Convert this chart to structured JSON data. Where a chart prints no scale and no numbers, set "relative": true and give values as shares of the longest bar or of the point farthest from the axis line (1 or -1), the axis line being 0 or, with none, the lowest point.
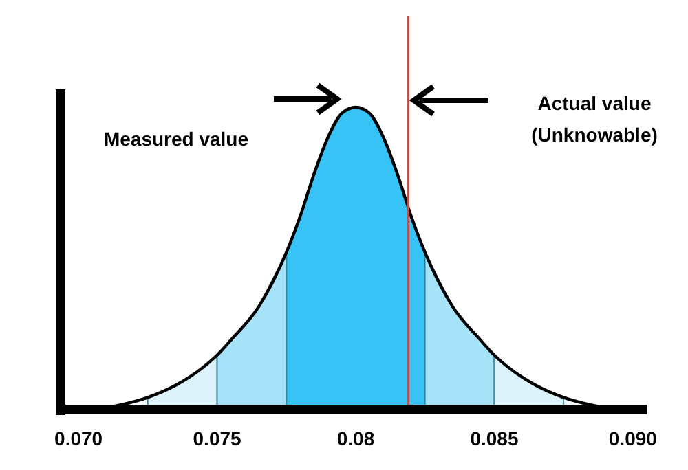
{
  "chart_data": {
    "type": "area",
    "relative": true,
    "tick_labels": "x",
    "xlim": [
      0.0695,
      0.0905
    ],
    "xticks": [
      {
        "value": 0.07,
        "label": "0.070"
      },
      0.075,
      0.08,
      0.085,
      {
        "value": 0.09,
        "label": "0.090"
      }
    ],
    "series": [
      {
        "color": "#f2fafe",
        "x": [
          0.0705,
          0.0715,
          0.0725
        ],
        "values": [
          0,
          0.015,
          0.04
        ]
      },
      {
        "color": "#dcf3fc",
        "x": [
          0.0725,
          0.0735,
          0.0745,
          0.075
        ],
        "values": [
          0.04,
          0.08,
          0.14,
          0.18
        ]
      },
      {
        "color": "#a6e3f9",
        "x": [
          0.075,
          0.0755,
          0.0765,
          0.0775
        ],
        "values": [
          0.18,
          0.23,
          0.34,
          0.52
        ]
      },
      {
        "color": "#38c3f6",
        "x": [
          0.0775,
          0.078,
          0.0785,
          0.079,
          0.0795,
          0.08,
          0.0805,
          0.081,
          0.0815,
          0.082,
          0.0825
        ],
        "values": [
          0.52,
          0.64,
          0.78,
          0.9,
          0.98,
          1,
          0.98,
          0.9,
          0.78,
          0.64,
          0.52
        ]
      },
      {
        "color": "#a6e3f9",
        "x": [
          0.0825,
          0.0835,
          0.0845,
          0.085
        ],
        "values": [
          0.52,
          0.34,
          0.23,
          0.18
        ]
      },
      {
        "color": "#dcf3fc",
        "x": [
          0.085,
          0.0855,
          0.0865,
          0.0875
        ],
        "values": [
          0.18,
          0.14,
          0.08,
          0.04
        ]
      },
      {
        "color": "#f2fafe",
        "x": [
          0.0875,
          0.0885,
          0.0895
        ],
        "values": [
          0.04,
          0.015,
          0
        ]
      },
      {
        "type": "line",
        "color": "#000000",
        "x": [
          0.0705,
          0.0715,
          0.0725,
          0.0735,
          0.0745,
          0.075,
          0.0755,
          0.0765,
          0.0775,
          0.078,
          0.0785,
          0.079,
          0.0795,
          0.08,
          0.0805,
          0.081,
          0.0815,
          0.082,
          0.0825,
          0.0835,
          0.0845,
          0.085,
          0.0855,
          0.0865,
          0.0875,
          0.0885,
          0.0895
        ],
        "values": [
          0,
          0.015,
          0.04,
          0.08,
          0.14,
          0.18,
          0.23,
          0.34,
          0.52,
          0.64,
          0.78,
          0.9,
          0.98,
          1,
          0.98,
          0.9,
          0.78,
          0.64,
          0.52,
          0.34,
          0.23,
          0.18,
          0.14,
          0.08,
          0.04,
          0.015,
          0
        ]
      }
    ],
    "ref_lines": [
      {
        "axis": "x",
        "value": 0.0819,
        "color": "#c0504d"
      }
    ],
    "annotations": [
      "Measured value",
      "Actual value\n(Unknowable)"
    ]
  }
}
